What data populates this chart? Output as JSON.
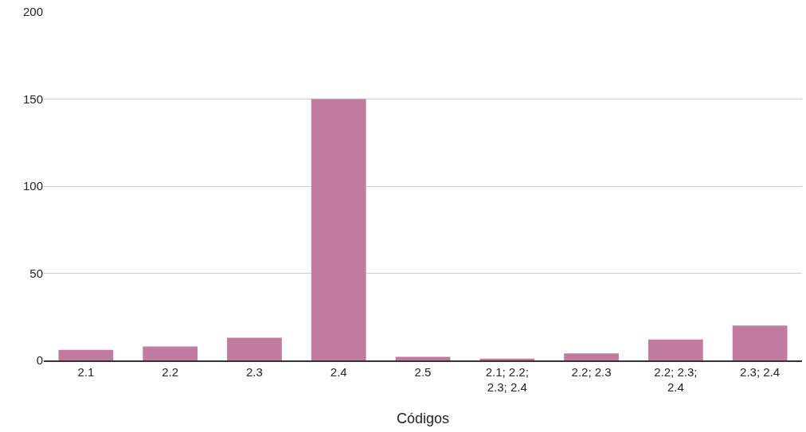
{
  "chart_data": {
    "type": "bar",
    "xlabel": "Códigos",
    "categories": [
      "2.1",
      "2.2",
      "2.3",
      "2.4",
      "2.5",
      "2.1; 2.2; 2.3; 2.4",
      "2.2; 2.3",
      "2.2; 2.3; 2.4",
      "2.3; 2.4"
    ],
    "series": [
      {
        "color": "#c27ba0",
        "values": [
          6,
          8,
          13,
          150,
          2,
          1,
          4,
          12,
          20
        ]
      }
    ],
    "ylim": [
      0,
      200
    ],
    "yticks": [
      0,
      50,
      100,
      150,
      200
    ],
    "grid": "y"
  }
}
